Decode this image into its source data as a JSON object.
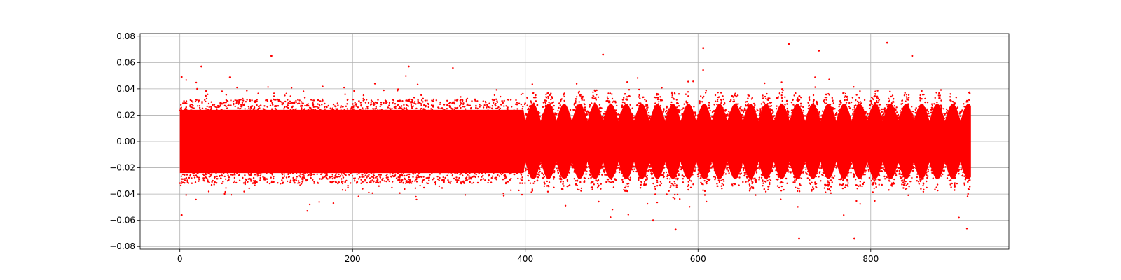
{
  "chart_data": {
    "type": "scatter",
    "title": "",
    "xlabel": "",
    "ylabel": "",
    "xlim": [
      -46,
      960
    ],
    "ylim": [
      -0.082,
      0.082
    ],
    "x_ticks": [
      0,
      200,
      400,
      600,
      800
    ],
    "x_tick_labels": [
      "0",
      "200",
      "400",
      "600",
      "800"
    ],
    "y_ticks": [
      -0.08,
      -0.06,
      -0.04,
      -0.02,
      0.0,
      0.02,
      0.04,
      0.06,
      0.08
    ],
    "y_tick_labels": [
      "−0.08",
      "−0.06",
      "−0.04",
      "−0.02",
      "0.00",
      "0.02",
      "0.04",
      "0.06",
      "0.08"
    ],
    "grid": true,
    "marker_color": "#ff0000",
    "series": [
      {
        "x_range": [
          0,
          916
        ],
        "typical_spread": 0.033,
        "extreme_points": [
          {
            "x": 2,
            "y": 0.049
          },
          {
            "x": 2,
            "y": -0.056
          },
          {
            "x": 25,
            "y": 0.057
          },
          {
            "x": 106,
            "y": 0.065
          },
          {
            "x": 265,
            "y": 0.057
          },
          {
            "x": 490,
            "y": 0.066
          },
          {
            "x": 548,
            "y": -0.06
          },
          {
            "x": 574,
            "y": -0.067
          },
          {
            "x": 606,
            "y": 0.071
          },
          {
            "x": 705,
            "y": 0.074
          },
          {
            "x": 717,
            "y": -0.074
          },
          {
            "x": 740,
            "y": 0.069
          },
          {
            "x": 781,
            "y": -0.074
          },
          {
            "x": 819,
            "y": 0.075
          },
          {
            "x": 848,
            "y": 0.065
          },
          {
            "x": 902,
            "y": -0.058
          }
        ]
      }
    ]
  }
}
